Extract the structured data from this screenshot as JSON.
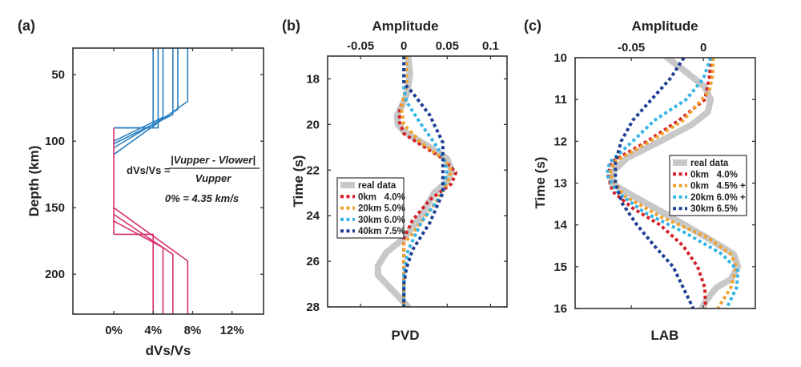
{
  "chart_data": [
    {
      "panel_label": "(a)",
      "type": "line",
      "xlabel": "dVs/Vs",
      "ylabel": "Depth (km)",
      "xlim": [
        -4.15,
        15.2
      ],
      "ylim": [
        30,
        230
      ],
      "y_reversed": true,
      "xticks": [
        0,
        4,
        8,
        12
      ],
      "xtick_labels": [
        "0%",
        "4%",
        "8%",
        "12%"
      ],
      "yticks": [
        50,
        100,
        150,
        200
      ],
      "ytick_labels": [
        "50",
        "100",
        "150",
        "200"
      ],
      "annotation": {
        "lhs": "dVs/Vs =",
        "numerator": "|Vupper - Vlower|",
        "denominator": "Vupper",
        "note": "0% = 4.35 km/s"
      },
      "series": [
        {
          "name": "LAB 4.0%",
          "color": "#2a7fc0",
          "x": [
            4.0,
            4.0,
            0
          ],
          "y": [
            30,
            90,
            90
          ]
        },
        {
          "name": "LAB 4.5%",
          "color": "#2a7fc0",
          "x": [
            4.5,
            4.5,
            0
          ],
          "y": [
            30,
            90,
            90
          ]
        },
        {
          "name": "LAB 5.0%",
          "color": "#2a7fc0",
          "x": [
            5.0,
            5.0,
            0
          ],
          "y": [
            30,
            82,
            100
          ]
        },
        {
          "name": "LAB 6.0%",
          "color": "#2a7fc0",
          "x": [
            6.0,
            6.0,
            0
          ],
          "y": [
            30,
            80,
            102
          ]
        },
        {
          "name": "LAB 6.5%",
          "color": "#2a7fc0",
          "x": [
            6.5,
            6.5,
            0
          ],
          "y": [
            30,
            76,
            105
          ]
        },
        {
          "name": "LAB 7.5%",
          "color": "#2a7fc0",
          "x": [
            7.5,
            7.5,
            0
          ],
          "y": [
            30,
            70,
            110
          ]
        },
        {
          "name": "PVD base",
          "color": "#d6306f",
          "x": [
            0,
            0
          ],
          "y": [
            90,
            170
          ]
        },
        {
          "name": "PVD 4.0%",
          "color": "#d6306f",
          "x": [
            0,
            4.0,
            4.0
          ],
          "y": [
            170,
            170,
            230
          ]
        },
        {
          "name": "PVD 5.0%",
          "color": "#d6306f",
          "x": [
            0,
            5.0,
            5.0
          ],
          "y": [
            160,
            180,
            230
          ]
        },
        {
          "name": "PVD 6.0%",
          "color": "#d6306f",
          "x": [
            0,
            6.0,
            6.0
          ],
          "y": [
            155,
            185,
            230
          ]
        },
        {
          "name": "PVD 7.5%",
          "color": "#d6306f",
          "x": [
            0,
            7.5,
            7.5
          ],
          "y": [
            150,
            190,
            230
          ]
        }
      ]
    },
    {
      "panel_label": "(b)",
      "type": "line",
      "title": "Amplitude",
      "xlabel": "PVD",
      "ylabel": "Time (s)",
      "xlim": [
        -0.088,
        0.119
      ],
      "ylim": [
        17,
        28
      ],
      "y_reversed": true,
      "xticks": [
        -0.05,
        0,
        0.05,
        0.1
      ],
      "xtick_labels": [
        "-0.05",
        "0",
        "0.05",
        "0.1"
      ],
      "yticks": [
        18,
        20,
        22,
        24,
        26,
        28
      ],
      "ytick_labels": [
        "18",
        "20",
        "22",
        "24",
        "26",
        "28"
      ],
      "legend_position": "middle-left",
      "series": [
        {
          "name": "real data",
          "color": "#c8c8c8",
          "style": "solid",
          "x": [
            0.005,
            0.007,
            0.004,
            0,
            -0.008,
            -0.007,
            0,
            0.03,
            0.05,
            0.055,
            0.05,
            0.035,
            0.02,
            0,
            -0.02,
            -0.03,
            -0.03,
            -0.02,
            0.005
          ],
          "y": [
            17,
            17.8,
            18.6,
            19,
            19.6,
            20,
            20.3,
            21,
            21.5,
            22,
            22.5,
            23,
            24,
            25,
            25.6,
            26.2,
            26.6,
            27,
            28
          ]
        },
        {
          "name": "0km   4.0%",
          "color": "#d42027",
          "style": "dotted",
          "x": [
            0.002,
            0.002,
            0,
            -0.005,
            -0.005,
            0,
            0.02,
            0.045,
            0.06,
            0.055,
            0.03,
            0.01,
            0,
            0,
            0
          ],
          "y": [
            17,
            18.3,
            18.9,
            19.4,
            19.9,
            20.4,
            20.9,
            21.5,
            22.1,
            22.6,
            23.3,
            24.2,
            25,
            26,
            28
          ]
        },
        {
          "name": "20km 5.0%",
          "color": "#f0a22e",
          "style": "dotted",
          "x": [
            0.003,
            0.003,
            0,
            -0.003,
            0,
            0.02,
            0.045,
            0.055,
            0.05,
            0.035,
            0.01,
            0,
            0,
            0
          ],
          "y": [
            17,
            18.3,
            18.8,
            19.3,
            20,
            20.8,
            21.5,
            22,
            22.6,
            23.5,
            24.8,
            25.2,
            26,
            28
          ]
        },
        {
          "name": "30km 6.0%",
          "color": "#35b4e6",
          "style": "dotted",
          "x": [
            0,
            0,
            0.003,
            0.02,
            0.035,
            0.045,
            0.05,
            0.045,
            0.02,
            0.005,
            0,
            0
          ],
          "y": [
            17,
            18.4,
            19,
            20,
            20.8,
            21.4,
            22,
            23,
            24.3,
            25.5,
            26.5,
            28
          ]
        },
        {
          "name": "40km 7.5%",
          "color": "#1d3f94",
          "style": "dotted",
          "x": [
            0,
            0,
            0.01,
            0.03,
            0.045,
            0.045,
            0.045,
            0.03,
            0.01,
            0.003,
            0,
            0
          ],
          "y": [
            17,
            18.2,
            18.6,
            19.6,
            20.8,
            22,
            23,
            24.3,
            25.5,
            26.3,
            27,
            28
          ]
        }
      ]
    },
    {
      "panel_label": "(c)",
      "type": "line",
      "title": "Amplitude",
      "xlabel": "LAB",
      "ylabel": "Time (s)",
      "xlim": [
        -0.0889,
        0.036
      ],
      "ylim": [
        10,
        16
      ],
      "y_reversed": true,
      "xticks": [
        -0.05,
        0
      ],
      "xtick_labels": [
        "-0.05",
        "0"
      ],
      "yticks": [
        10,
        11,
        12,
        13,
        14,
        15,
        16
      ],
      "ytick_labels": [
        "10",
        "11",
        "12",
        "13",
        "14",
        "15",
        "16"
      ],
      "legend_position": "middle-right",
      "series": [
        {
          "name": "real data",
          "color": "#c8c8c8",
          "style": "solid",
          "x": [
            -0.025,
            -0.0135,
            0.001,
            0.005,
            0.003,
            -0.008,
            -0.03,
            -0.053,
            -0.062,
            -0.064,
            -0.049,
            -0.023,
            0.002,
            0.021,
            0.024,
            0.019,
            0.009,
            0.002,
            -0.001
          ],
          "y": [
            10,
            10.3,
            10.7,
            11,
            11.3,
            11.6,
            12,
            12.4,
            12.7,
            13,
            13.3,
            13.8,
            14.3,
            14.7,
            15,
            15.3,
            15.5,
            15.8,
            16
          ]
        },
        {
          "name": "0km   4.0%",
          "color": "#d42027",
          "style": "dotted",
          "x": [
            0.0055,
            0.004,
            0.001,
            -0.017,
            -0.039,
            -0.064,
            -0.066,
            -0.063,
            -0.049,
            -0.03,
            -0.014,
            -0.004,
            0.001,
            0.0015
          ],
          "y": [
            10,
            10.5,
            11,
            11.5,
            12,
            12.5,
            12.8,
            13.2,
            13.6,
            14,
            14.5,
            15,
            15.5,
            16
          ]
        },
        {
          "name": "0km   4.5% +",
          "color": "#f0a22e",
          "style": "dotted",
          "x": [
            0.0067,
            0.0065,
            0.004,
            -0.014,
            -0.037,
            -0.062,
            -0.065,
            -0.055,
            -0.03,
            0.003,
            0.019,
            0.023,
            0.019,
            0.01
          ],
          "y": [
            10,
            10.4,
            10.8,
            11.5,
            12,
            12.5,
            12.8,
            13.3,
            13.8,
            14.3,
            14.7,
            15,
            15.5,
            16
          ]
        },
        {
          "name": "20km 6.0% +",
          "color": "#35b4e6",
          "style": "dotted",
          "x": [
            0.005,
            0,
            -0.012,
            -0.034,
            -0.049,
            -0.065,
            -0.067,
            -0.06,
            -0.041,
            -0.012,
            0.013,
            0.024,
            0.023,
            0.016
          ],
          "y": [
            10,
            10.5,
            11,
            11.5,
            12,
            12.5,
            12.8,
            13.2,
            13.7,
            14.2,
            14.7,
            15.1,
            15.5,
            16
          ]
        },
        {
          "name": "30km 6.5%",
          "color": "#1d3f94",
          "style": "dotted",
          "x": [
            -0.0135,
            -0.023,
            -0.036,
            -0.049,
            -0.057,
            -0.061,
            -0.061,
            -0.056,
            -0.046,
            -0.034,
            -0.021,
            -0.014,
            -0.007
          ],
          "y": [
            10,
            10.5,
            11,
            11.5,
            12,
            12.5,
            13,
            13.5,
            14,
            14.5,
            15,
            15.5,
            16
          ]
        }
      ]
    }
  ]
}
